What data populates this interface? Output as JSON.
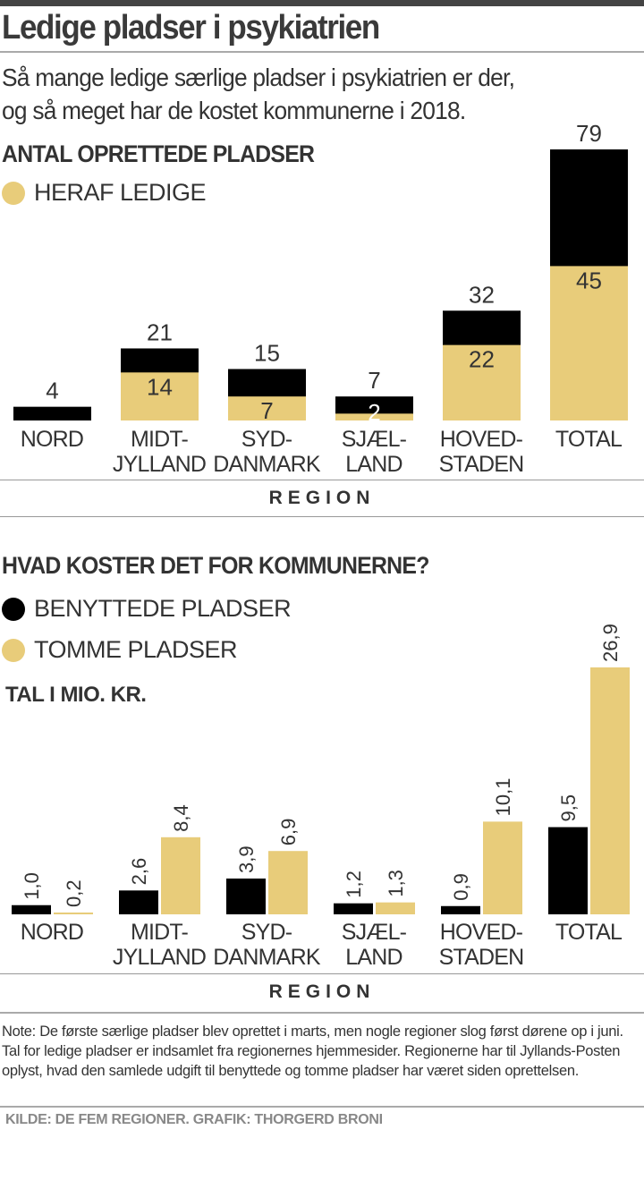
{
  "title": "Ledige pladser i psykiatrien",
  "subtitle_lines": [
    "Så mange ledige særlige pladser i psykiatrien er der,",
    "og så meget har de kostet kommunerne i 2018."
  ],
  "colors": {
    "black": "#000000",
    "yellow": "#e8cc7a",
    "text": "#333333"
  },
  "chart_data": [
    {
      "type": "bar",
      "stacked": "overlay",
      "title": "ANTAL OPRETTEDE PLADSER",
      "legend": [
        "HERAF LEDIGE"
      ],
      "xlabel": "REGION",
      "categories": [
        [
          "NORD"
        ],
        [
          "MIDT-",
          "JYLLAND"
        ],
        [
          "SYD-",
          "DANMARK"
        ],
        [
          "SJÆL-",
          "LAND"
        ],
        [
          "HOVED-",
          "STADEN"
        ],
        [
          "TOTAL"
        ]
      ],
      "series": [
        {
          "name": "ANTAL OPRETTEDE PLADSER",
          "color": "#000000",
          "values": [
            4,
            21,
            15,
            7,
            32,
            79
          ]
        },
        {
          "name": "HERAF LEDIGE",
          "color": "#e8cc7a",
          "values": [
            0,
            14,
            7,
            2,
            22,
            45
          ]
        }
      ],
      "ylim": [
        0,
        79
      ]
    },
    {
      "type": "bar",
      "title": "HVAD KOSTER DET FOR KOMMUNERNE?",
      "unit": "TAL I MIO. KR.",
      "xlabel": "REGION",
      "categories": [
        [
          "NORD"
        ],
        [
          "MIDT-",
          "JYLLAND"
        ],
        [
          "SYD-",
          "DANMARK"
        ],
        [
          "SJÆL-",
          "LAND"
        ],
        [
          "HOVED-",
          "STADEN"
        ],
        [
          "TOTAL"
        ]
      ],
      "series": [
        {
          "name": "BENYTTEDE PLADSER",
          "color": "#000000",
          "values": [
            1.0,
            2.6,
            3.9,
            1.2,
            0.9,
            9.5
          ],
          "labels": [
            "1,0",
            "2,6",
            "3,9",
            "1,2",
            "0,9",
            "9,5"
          ]
        },
        {
          "name": "TOMME PLADSER",
          "color": "#e8cc7a",
          "values": [
            0.2,
            8.4,
            6.9,
            1.3,
            10.1,
            26.9
          ],
          "labels": [
            "0,2",
            "8,4",
            "6,9",
            "1,3",
            "10,1",
            "26,9"
          ]
        }
      ],
      "ylim": [
        0,
        26.9
      ]
    }
  ],
  "note": "Note: De første særlige pladser blev oprettet i marts, men nogle regioner slog først dørene op i juni. Tal for ledige pladser er indsamlet fra regionernes hjemmesider. Regionerne har til Jyllands-Posten oplyst, hvad den samlede udgift til benyttede og tomme pladser har været siden oprettelsen.",
  "source": "KILDE: DE FEM REGIONER. GRAFIK: THORGERD BRONI"
}
